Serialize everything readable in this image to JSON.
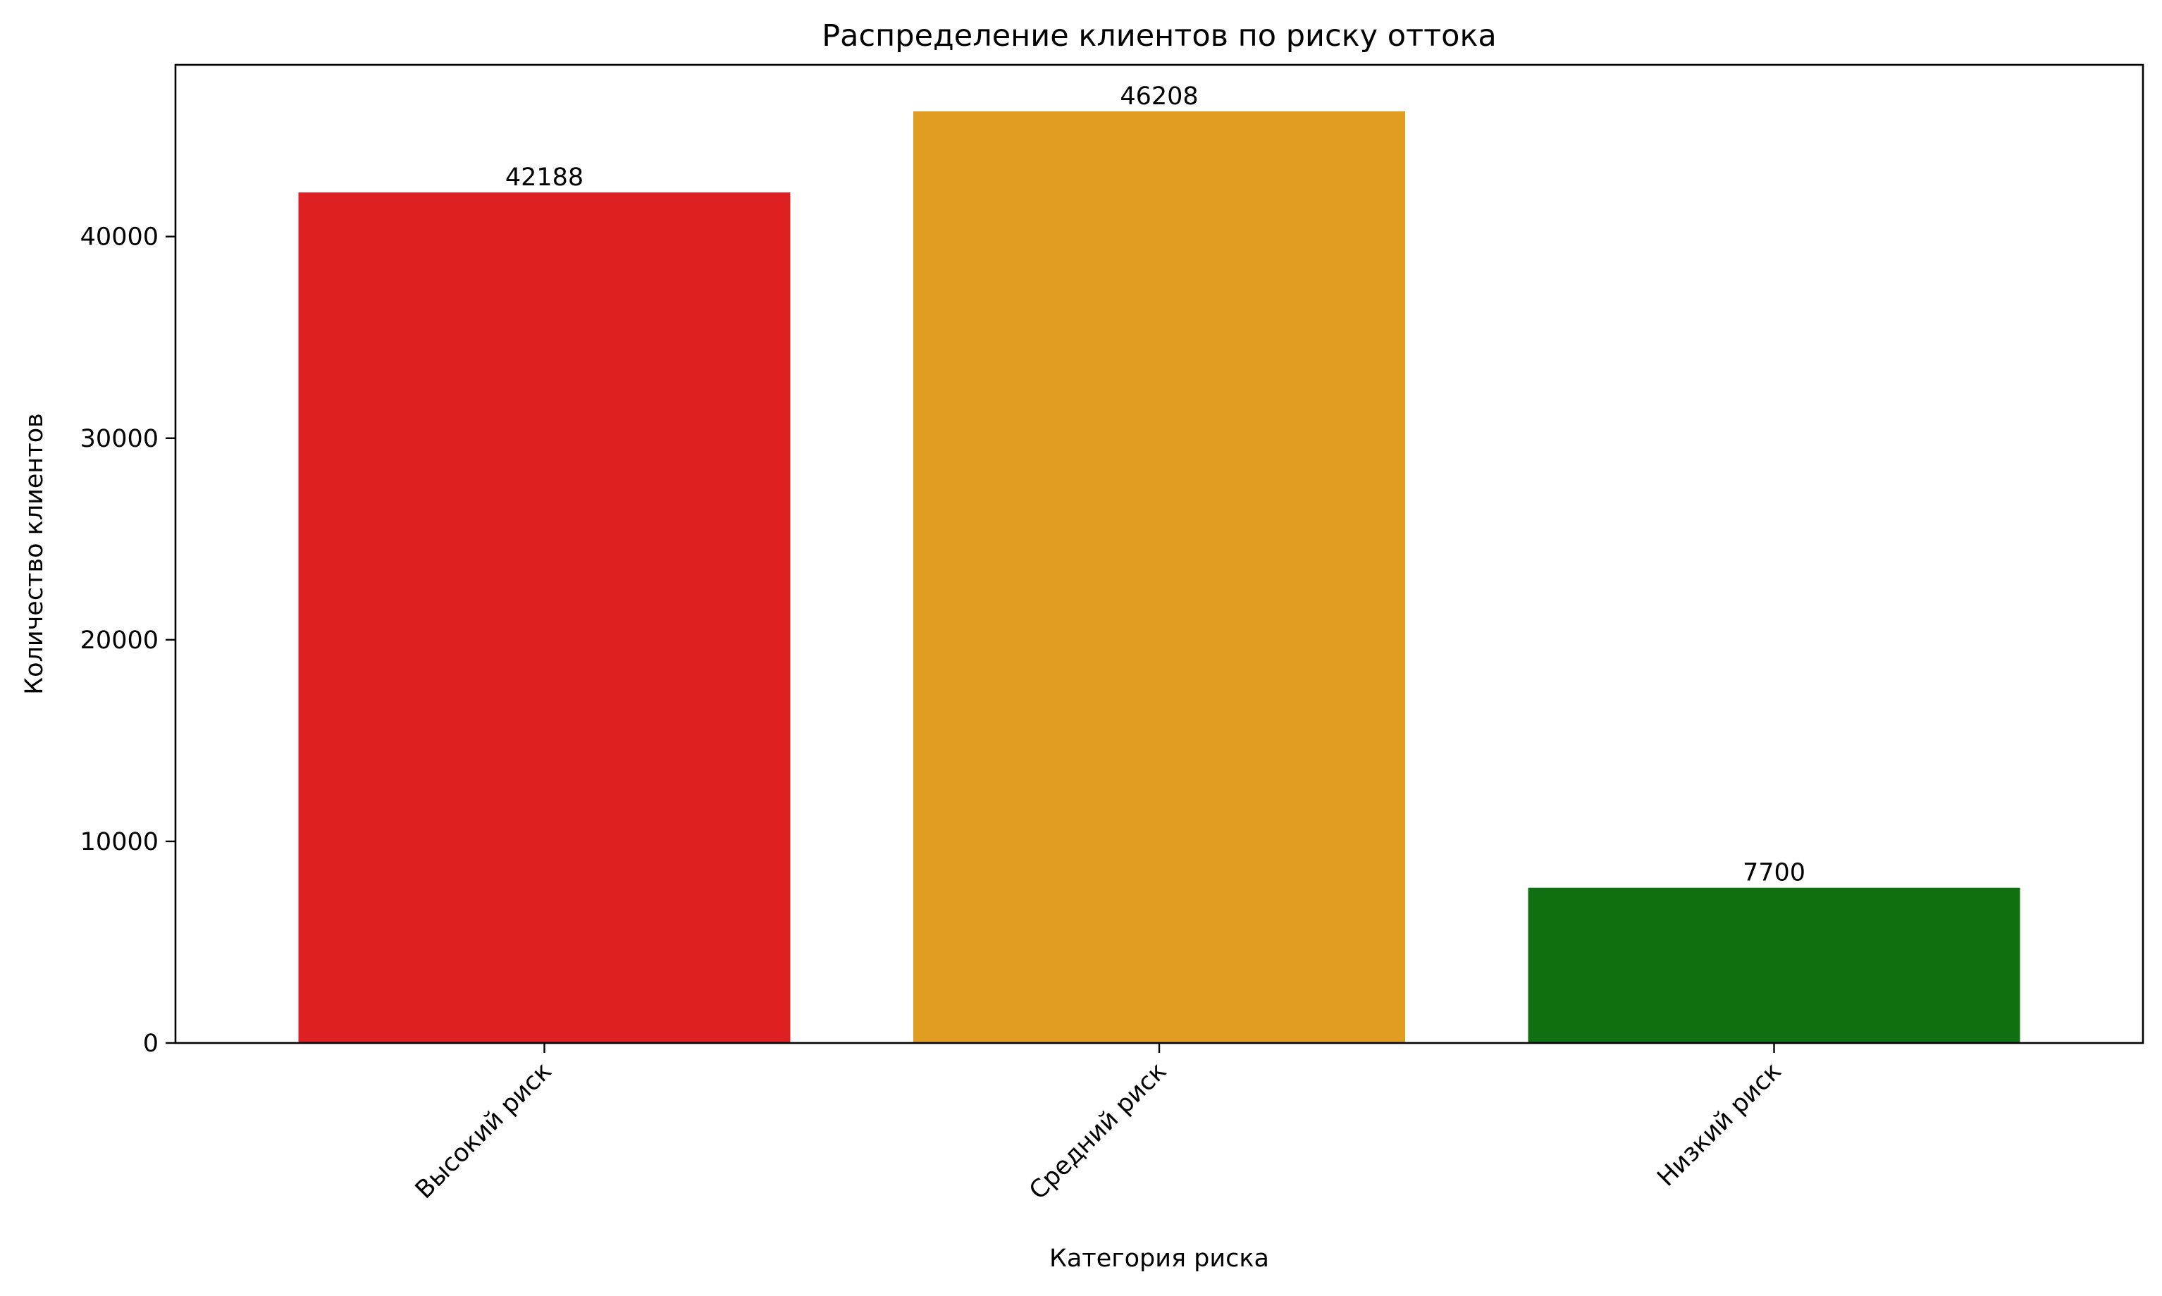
{
  "chart_data": {
    "type": "bar",
    "title": "Распределение клиентов по риску оттока",
    "xlabel": "Категория риска",
    "ylabel": "Количество клиентов",
    "categories": [
      "Высокий риск",
      "Средний риск",
      "Низкий риск"
    ],
    "values": [
      42188,
      46208,
      7700
    ],
    "data_labels": [
      "42188",
      "46208",
      "7700"
    ],
    "colors": [
      "#df2022",
      "#e09d21",
      "#0f6f11"
    ],
    "ylim": [
      0,
      48518
    ],
    "yticks": [
      0,
      10000,
      20000,
      30000,
      40000
    ],
    "ytick_labels": [
      "0",
      "10000",
      "20000",
      "30000",
      "40000"
    ],
    "xtick_rotation": -45,
    "grid": false,
    "legend": "none"
  }
}
